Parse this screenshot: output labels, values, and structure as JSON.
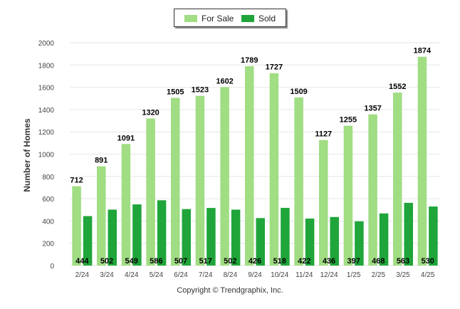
{
  "colors": {
    "for_sale": "#a0dd83",
    "sold": "#1fa53a",
    "grid": "#e6e6e6",
    "axis_text": "#444444"
  },
  "credit": "Copyright © Trendgraphix, Inc.",
  "chart_data": {
    "type": "bar",
    "ylabel": "Number of Homes",
    "xlabel": "",
    "ylim": [
      0,
      2000
    ],
    "yticks": [
      0,
      200,
      400,
      600,
      800,
      1000,
      1200,
      1400,
      1600,
      1800,
      2000
    ],
    "grid": true,
    "legend_position": "top-center",
    "categories": [
      "2/24",
      "3/24",
      "4/24",
      "5/24",
      "6/24",
      "7/24",
      "8/24",
      "9/24",
      "10/24",
      "11/24",
      "12/24",
      "1/25",
      "2/25",
      "3/25",
      "4/25"
    ],
    "series": [
      {
        "name": "For Sale",
        "values": [
          712,
          891,
          1091,
          1320,
          1505,
          1523,
          1602,
          1789,
          1727,
          1509,
          1127,
          1255,
          1357,
          1552,
          1874
        ]
      },
      {
        "name": "Sold",
        "values": [
          444,
          502,
          549,
          586,
          507,
          517,
          502,
          426,
          518,
          422,
          436,
          397,
          468,
          563,
          530
        ]
      }
    ]
  }
}
